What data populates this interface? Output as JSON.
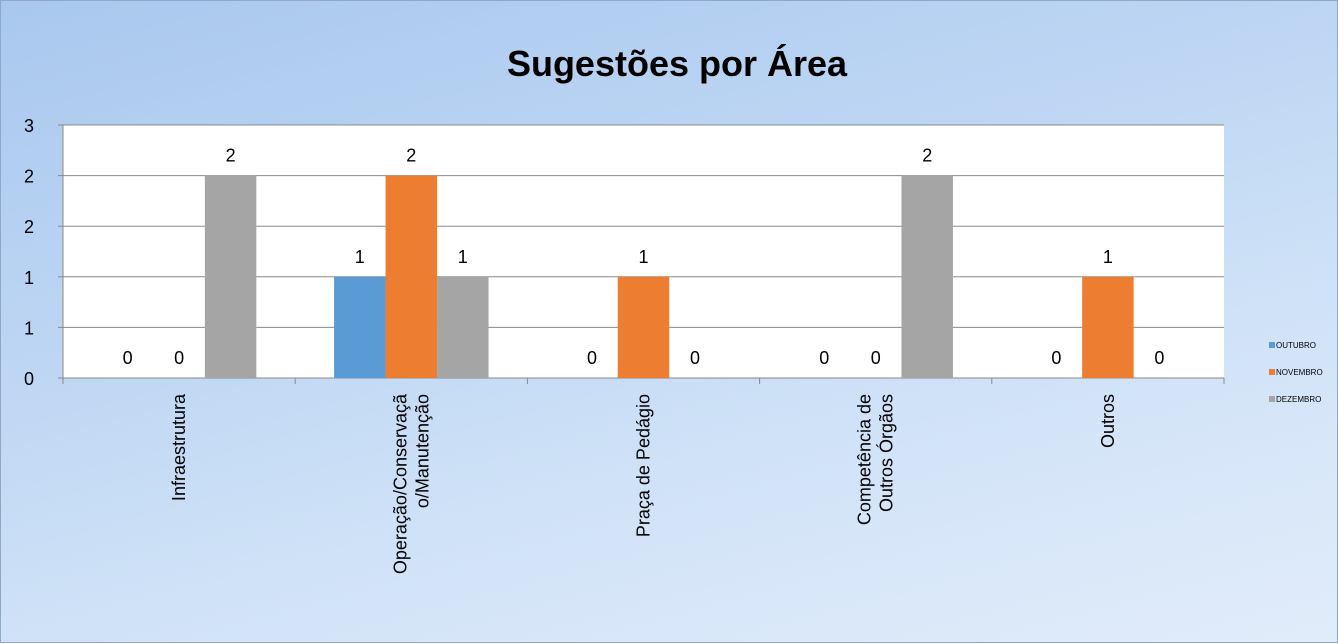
{
  "chart_data": {
    "type": "bar",
    "title": "Sugestões por Área",
    "xlabel": "",
    "ylabel": "",
    "categories": [
      [
        "Infraestrutura"
      ],
      [
        "Operação/Conservaçã",
        "o/Manutenção"
      ],
      [
        "Praça de Pedágio"
      ],
      [
        "Competência de",
        "Outros Órgãos"
      ],
      [
        "Outros"
      ]
    ],
    "series": [
      {
        "name": "OUTUBRO",
        "color": "#5b9bd5",
        "values": [
          0,
          1,
          0,
          0,
          0
        ]
      },
      {
        "name": "NOVEMBRO",
        "color": "#ed7d31",
        "values": [
          0,
          2,
          1,
          0,
          1
        ]
      },
      {
        "name": "DEZEMBRO",
        "color": "#a5a5a5",
        "values": [
          2,
          1,
          0,
          2,
          0
        ]
      }
    ],
    "data_labels": [
      [
        "0",
        "1",
        "0",
        "0",
        "0"
      ],
      [
        "0",
        "2",
        "1",
        "0",
        "1"
      ],
      [
        "2",
        "1",
        "0",
        "2",
        "0"
      ]
    ],
    "y_tick_labels": [
      "0",
      "1",
      "1",
      "2",
      "2",
      "3"
    ],
    "ylim": [
      0,
      2.5
    ],
    "grid": true,
    "legend_position": "right"
  }
}
